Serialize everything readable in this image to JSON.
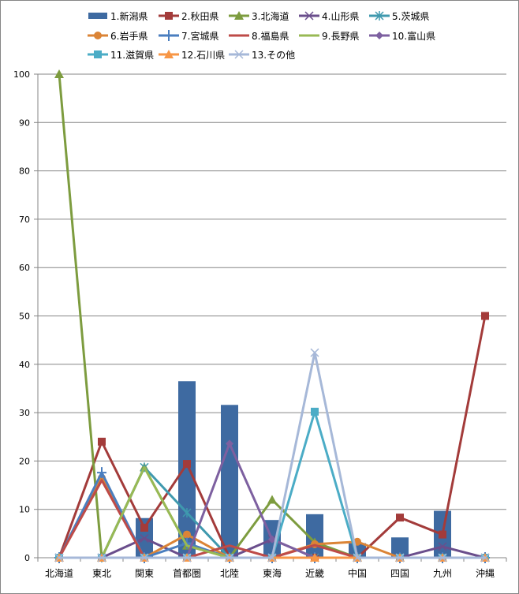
{
  "chart_data": {
    "type": "bar+line",
    "title": "",
    "xlabel": "",
    "ylabel": "",
    "ylim": [
      0,
      100
    ],
    "yticks": [
      "0",
      "10",
      "20",
      "30",
      "40",
      "50",
      "60",
      "70",
      "80",
      "90",
      "100"
    ],
    "grid": true,
    "legend_position": "top",
    "categories": [
      "北海道",
      "東北",
      "関東",
      "首都圏",
      "北陸",
      "東海",
      "近畿",
      "中国",
      "四国",
      "九州",
      "沖縄"
    ],
    "series": [
      {
        "name": "1.新潟県",
        "kind": "bar",
        "color": "#3E6AA1",
        "marker": "none",
        "values": [
          0,
          0,
          8.2,
          36.5,
          31.6,
          7.8,
          9.0,
          3.0,
          4.2,
          9.7,
          0
        ]
      },
      {
        "name": "2.秋田県",
        "kind": "line",
        "color": "#A33B3A",
        "marker": "square",
        "values": [
          0,
          24.0,
          6.2,
          19.4,
          0,
          0,
          0,
          0,
          8.3,
          4.8,
          50.0
        ]
      },
      {
        "name": "3.北海道",
        "kind": "line",
        "color": "#7D9C3F",
        "marker": "triangle",
        "values": [
          100,
          0,
          18.7,
          2.5,
          0,
          12.0,
          3.2,
          0,
          0,
          0,
          0
        ]
      },
      {
        "name": "4.山形県",
        "kind": "line",
        "color": "#6A4E8C",
        "marker": "x",
        "values": [
          0,
          0,
          4.0,
          0,
          0,
          3.8,
          0,
          0,
          0,
          2.3,
          0
        ]
      },
      {
        "name": "5.茨城県",
        "kind": "line",
        "color": "#3F99AE",
        "marker": "star",
        "values": [
          0,
          0,
          18.7,
          9.3,
          0,
          0,
          0,
          0,
          0,
          0,
          0
        ]
      },
      {
        "name": "6.岩手県",
        "kind": "line",
        "color": "#DB8436",
        "marker": "circle",
        "values": [
          0,
          16.5,
          0,
          4.8,
          0,
          0,
          2.8,
          3.3,
          0,
          0,
          0
        ]
      },
      {
        "name": "7.宮城県",
        "kind": "line",
        "color": "#4A7EBF",
        "marker": "plus",
        "values": [
          0,
          17.6,
          0,
          3.0,
          0,
          0,
          0,
          0,
          0,
          0,
          0
        ]
      },
      {
        "name": "8.福島県",
        "kind": "line",
        "color": "#BE4B48",
        "marker": "none",
        "values": [
          0,
          16.0,
          0,
          0,
          2.5,
          0,
          2.6,
          0,
          0,
          0,
          0
        ]
      },
      {
        "name": "9.長野県",
        "kind": "line",
        "color": "#98B954",
        "marker": "none",
        "values": [
          0,
          0,
          18.7,
          2.5,
          0,
          0,
          0,
          0,
          0,
          0,
          0
        ]
      },
      {
        "name": "10.富山県",
        "kind": "line",
        "color": "#7D60A0",
        "marker": "diamond",
        "values": [
          0,
          0,
          0,
          0,
          23.6,
          3.8,
          0,
          0,
          0,
          0,
          0
        ]
      },
      {
        "name": "11.滋賀県",
        "kind": "line",
        "color": "#4BACC6",
        "marker": "square",
        "values": [
          0,
          0,
          0,
          0,
          0,
          0,
          30.2,
          0,
          0,
          0,
          0
        ]
      },
      {
        "name": "12.石川県",
        "kind": "line",
        "color": "#F79646",
        "marker": "triangle",
        "values": [
          0,
          0,
          0,
          0,
          0,
          0,
          0,
          0,
          0,
          0,
          0
        ]
      },
      {
        "name": "13.その他",
        "kind": "line",
        "color": "#A6B8D8",
        "marker": "x",
        "values": [
          0,
          0,
          0,
          0,
          0,
          0,
          42.4,
          0,
          0,
          0,
          0
        ]
      }
    ]
  }
}
